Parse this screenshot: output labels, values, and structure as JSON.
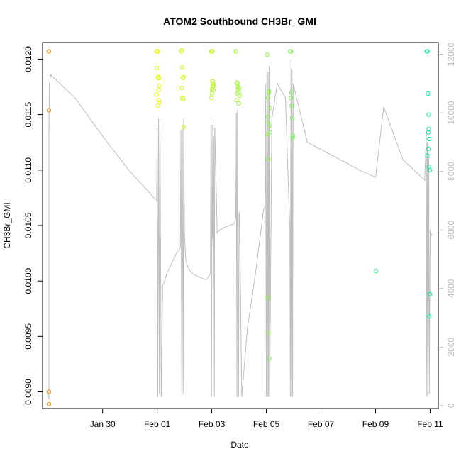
{
  "chart_data": {
    "type": "scatter",
    "title": "ATOM2 Southbound CH3Br_GMI",
    "xlabel": "Date",
    "ylabel": "CH3Br_GMI",
    "x_unit": "day offset from Jan 29",
    "xlim": [
      -1.2,
      13.3
    ],
    "ylim": [
      0.00885,
      0.01215
    ],
    "y2lim": [
      -100,
      12400
    ],
    "x_ticks": [
      {
        "value": 1,
        "label": "Jan 30"
      },
      {
        "value": 3,
        "label": "Feb 01"
      },
      {
        "value": 5,
        "label": "Feb 03"
      },
      {
        "value": 7,
        "label": "Feb 05"
      },
      {
        "value": 9,
        "label": "Feb 07"
      },
      {
        "value": 11,
        "label": "Feb 09"
      },
      {
        "value": 13,
        "label": "Feb 11"
      }
    ],
    "y_ticks": [
      {
        "value": 0.009,
        "label": "0.0090"
      },
      {
        "value": 0.0095,
        "label": "0.0095"
      },
      {
        "value": 0.01,
        "label": "0.0100"
      },
      {
        "value": 0.0105,
        "label": "0.0105"
      },
      {
        "value": 0.011,
        "label": "0.0110"
      },
      {
        "value": 0.0115,
        "label": "0.0115"
      },
      {
        "value": 0.012,
        "label": "0.0120"
      }
    ],
    "y2_ticks": [
      {
        "value": 0,
        "label": "0"
      },
      {
        "value": 2000,
        "label": "2000"
      },
      {
        "value": 4000,
        "label": "4000"
      },
      {
        "value": 6000,
        "label": "6000"
      },
      {
        "value": 8000,
        "label": "8000"
      },
      {
        "value": 10000,
        "label": "10000"
      },
      {
        "value": 12000,
        "label": "12000"
      }
    ],
    "colors": {
      "points_start": "#ff7f00",
      "points_mid": "#e6ff00",
      "points_end": "#00f0a0",
      "altitude_line": "#bebebe"
    },
    "series": [
      {
        "name": "CH3Br_GMI",
        "kind": "points",
        "x": [
          -0.97,
          -0.97,
          -0.97,
          -0.97,
          2.98,
          3.0,
          3.02,
          3.03,
          3.05,
          3.07,
          3.08,
          2.99,
          3.04,
          3.06,
          3.08,
          3.02,
          2.97,
          3.88,
          3.9,
          3.92,
          3.94,
          3.96,
          3.91,
          3.93,
          3.95,
          3.9,
          3.97,
          4.98,
          5.0,
          5.02,
          5.05,
          5.07,
          5.03,
          5.0,
          5.01,
          5.06,
          4.99,
          5.04,
          5.88,
          5.9,
          5.92,
          5.95,
          5.97,
          6.0,
          6.02,
          5.93,
          5.91,
          5.96,
          5.99,
          6.01,
          7.03,
          7.05,
          7.07,
          7.1,
          7.12,
          7.04,
          7.06,
          7.08,
          7.1,
          7.05,
          7.08,
          7.11,
          7.13,
          7.06,
          7.88,
          7.9,
          7.92,
          7.95,
          7.97,
          7.93,
          7.9,
          7.96,
          11.02,
          12.88,
          12.9,
          12.92,
          12.95,
          12.97,
          12.93,
          12.9,
          12.94,
          12.96,
          12.99,
          12.97,
          12.95,
          12.99
        ],
        "y": [
          0.01207,
          0.01154,
          0.009,
          0.00889,
          0.01207,
          0.01207,
          0.01207,
          0.01183,
          0.01172,
          0.01183,
          0.01176,
          0.01192,
          0.01184,
          0.01163,
          0.01161,
          0.01158,
          0.01168,
          0.01207,
          0.01208,
          0.01193,
          0.01183,
          0.01184,
          0.01174,
          0.01165,
          0.01164,
          0.01174,
          0.01139,
          0.01207,
          0.01207,
          0.01207,
          0.01178,
          0.01176,
          0.0118,
          0.01169,
          0.01173,
          0.01172,
          0.01165,
          0.01176,
          0.01207,
          0.01207,
          0.01179,
          0.01178,
          0.01173,
          0.0117,
          0.01167,
          0.01169,
          0.01163,
          0.01175,
          0.0116,
          0.01174,
          0.01204,
          0.01148,
          0.01143,
          0.0114,
          0.01134,
          0.01132,
          0.01165,
          0.0117,
          0.01171,
          0.00985,
          0.00953,
          0.0093,
          0.01156,
          0.0111,
          0.01207,
          0.01207,
          0.0117,
          0.01147,
          0.01131,
          0.01158,
          0.01165,
          0.01129,
          0.01009,
          0.01207,
          0.01207,
          0.01169,
          0.01137,
          0.01128,
          0.01134,
          0.01113,
          0.01119,
          0.01103,
          0.00988,
          0.00968,
          0.0115,
          0.011
        ]
      },
      {
        "name": "altitude",
        "kind": "line",
        "axis": "right",
        "x": [
          -0.97,
          -0.97,
          -0.95,
          -0.9,
          0.0,
          1.0,
          2.0,
          2.98,
          3.0,
          3.02,
          3.05,
          3.08,
          3.1,
          3.15,
          3.2,
          3.25,
          3.3,
          3.35,
          3.4,
          3.5,
          3.6,
          3.7,
          3.8,
          3.85,
          3.87,
          3.9,
          3.92,
          3.95,
          3.97,
          4.0,
          4.05,
          4.1,
          4.2,
          4.3,
          4.5,
          4.8,
          4.95,
          4.97,
          4.99,
          5.01,
          5.03,
          5.05,
          5.07,
          5.09,
          5.11,
          5.2,
          5.3,
          5.5,
          5.8,
          5.86,
          5.88,
          5.9,
          5.92,
          5.94,
          5.96,
          5.98,
          6.0,
          6.02,
          6.1,
          6.3,
          6.6,
          6.9,
          6.95,
          6.97,
          7.0,
          7.02,
          7.04,
          7.06,
          7.08,
          7.1,
          7.12,
          7.2,
          7.4,
          7.7,
          7.86,
          7.88,
          7.9,
          7.92,
          7.94,
          7.96,
          7.98,
          8.5,
          9.5,
          10.5,
          11.0,
          11.3,
          12.0,
          12.8,
          12.86,
          12.88,
          12.9,
          12.92,
          12.95,
          12.97,
          13.0,
          13.05
        ],
        "y": [
          200,
          9000,
          11000,
          11300,
          10500,
          9200,
          8000,
          7000,
          9500,
          300,
          9800,
          400,
          9700,
          300,
          4100,
          4200,
          4350,
          4500,
          4600,
          4800,
          5000,
          5200,
          5300,
          5400,
          9400,
          300,
          9600,
          400,
          9800,
          5800,
          5000,
          4800,
          4600,
          4500,
          4400,
          4300,
          4500,
          9800,
          300,
          9600,
          5800,
          5500,
          9200,
          300,
          9500,
          5900,
          6000,
          6100,
          6200,
          6300,
          6400,
          10000,
          300,
          10100,
          6200,
          300,
          6600,
          6500,
          300,
          2600,
          4500,
          6700,
          6800,
          11000,
          300,
          11500,
          300,
          11400,
          300,
          11600,
          300,
          9800,
          11000,
          10500,
          6000,
          300,
          11800,
          300,
          11500,
          300,
          11000,
          9000,
          8500,
          8000,
          7800,
          10200,
          8400,
          7700,
          9300,
          300,
          9000,
          300,
          8500,
          400,
          6000,
          5800
        ]
      }
    ]
  }
}
